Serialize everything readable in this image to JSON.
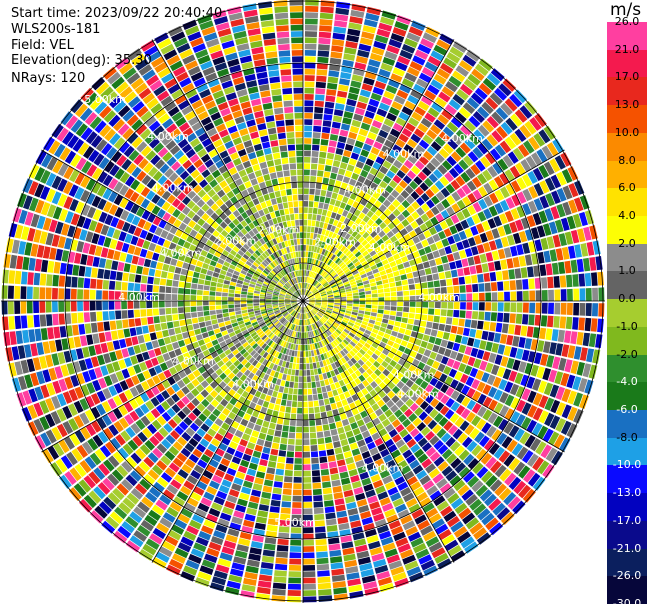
{
  "header": {
    "start_time": "Start time: 2023/09/22 20:40:40",
    "instrument": "WLS200s-181",
    "field": "Field: VEL",
    "elevation": "Elevation(deg): 35.30",
    "nrays": "NRays: 120"
  },
  "colorbar": {
    "unit": "m/s",
    "colors": [
      "#ff3fa0",
      "#f41a4e",
      "#e8281e",
      "#f55200",
      "#fb8a00",
      "#ffb000",
      "#ffe200",
      "#fdfe04",
      "#8c8c8c",
      "#646464",
      "#a6cd2f",
      "#80b91e",
      "#2f8f2e",
      "#1a7a1a",
      "#1970c2",
      "#1ea0e6",
      "#0a0aff",
      "#0202c0",
      "#0a0a8c",
      "#0b1f5e",
      "#06063a"
    ],
    "labels": [
      "26.0",
      "21.0",
      "17.0",
      "13.0",
      "10.0",
      "8.0",
      "6.0",
      "4.0",
      "2.0",
      "1.0",
      "0.0",
      "-1.0",
      "-2.0",
      "-4.0",
      "-6.0",
      "-8.0",
      "-10.0",
      "-13.0",
      "-17.0",
      "-21.0",
      "-26.0",
      "-30.0"
    ]
  },
  "chart_data": {
    "type": "heatmap",
    "title": "",
    "xlabel": "",
    "ylabel": "",
    "field": "VEL",
    "units": "m/s",
    "value_range": [
      -30.0,
      26.0
    ],
    "num_rays": 120,
    "elevation_deg": 35.3,
    "range_ring_labels": [
      "2.00km",
      "4.00km",
      "5.00km"
    ],
    "grid": true,
    "description_regions": [
      {
        "range_km": [
          0.0,
          2.0
        ],
        "dominant_values_ms": [
          -1.0,
          0.0,
          2.0
        ]
      },
      {
        "range_km": [
          2.0,
          4.0
        ],
        "dominant_values_ms": [
          -1.0,
          0.0,
          2.0
        ]
      },
      {
        "range_km": [
          4.0,
          6.0
        ],
        "dominant_values_ms": [
          -30.0,
          26.0
        ]
      }
    ]
  }
}
